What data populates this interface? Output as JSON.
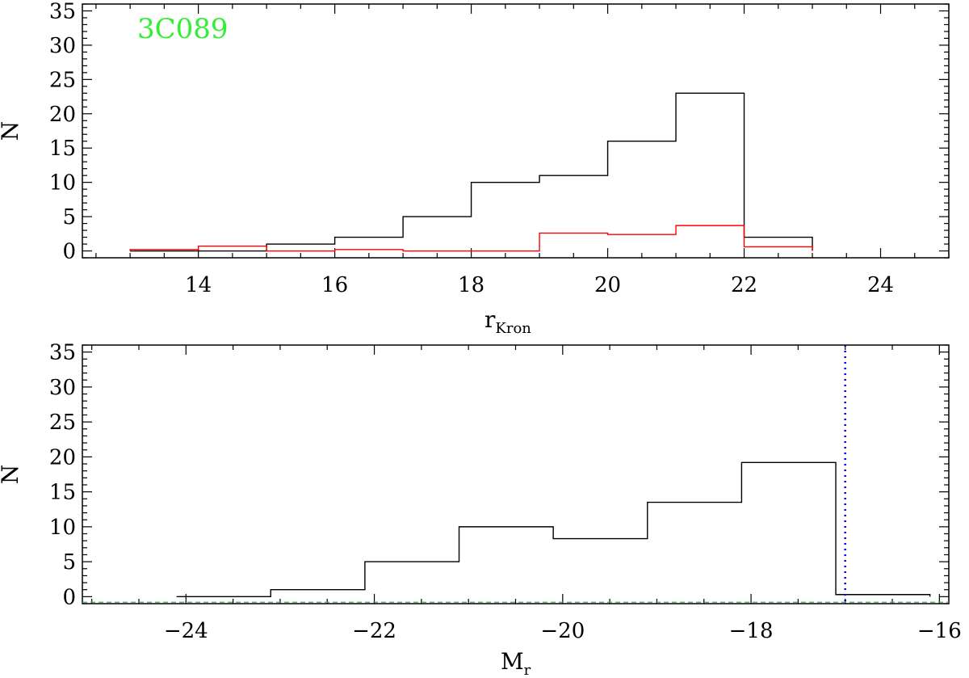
{
  "chart_data": [
    {
      "type": "histogram",
      "xlabel": "r",
      "xlabel_sub": "Kron",
      "ylabel": "N",
      "xlim": [
        12.3,
        25.0
      ],
      "ylim": [
        -1,
        36
      ],
      "xticks": [
        14,
        16,
        18,
        20,
        22,
        24
      ],
      "xtick_labels": [
        "14",
        "16",
        "18",
        "20",
        "22",
        "24"
      ],
      "yticks": [
        0,
        5,
        10,
        15,
        20,
        25,
        30,
        35
      ],
      "ytick_labels": [
        "0",
        "5",
        "10",
        "15",
        "20",
        "25",
        "30",
        "35"
      ],
      "annotation": {
        "text": "3C089",
        "color": "#33ee33"
      },
      "series": [
        {
          "color": "#000000",
          "bin_edges": [
            13,
            14,
            15,
            16,
            17,
            18,
            19,
            20,
            21,
            22,
            23
          ],
          "values": [
            0,
            0,
            1,
            2,
            5,
            10,
            11,
            16,
            23,
            2
          ]
        },
        {
          "color": "#ff0000",
          "bin_edges": [
            13,
            14,
            15,
            16,
            17,
            18,
            19,
            20,
            21,
            22,
            23
          ],
          "values": [
            0.2,
            0.7,
            0,
            0.2,
            0,
            0,
            2.6,
            2.4,
            3.7,
            0.6
          ]
        }
      ]
    },
    {
      "type": "histogram",
      "xlabel": "M",
      "xlabel_sub": "r",
      "ylabel": "N",
      "xlim": [
        -25.1,
        -15.9
      ],
      "ylim": [
        -1,
        36
      ],
      "xticks": [
        -24,
        -22,
        -20,
        -18,
        -16
      ],
      "xtick_labels": [
        "−24",
        "−22",
        "−20",
        "−18",
        "−16"
      ],
      "yticks": [
        0,
        5,
        10,
        15,
        20,
        25,
        30,
        35
      ],
      "ytick_labels": [
        "0",
        "5",
        "10",
        "15",
        "20",
        "25",
        "30",
        "35"
      ],
      "series": [
        {
          "color": "#000000",
          "bin_edges": [
            -24.1,
            -23.1,
            -22.1,
            -21.1,
            -20.1,
            -19.1,
            -18.1,
            -17.1,
            -16.1
          ],
          "values": [
            0,
            1,
            5,
            10,
            8.3,
            13.5,
            19.2,
            0.3
          ]
        }
      ],
      "vline": {
        "x": -17.0,
        "color": "#0000ff",
        "style": "dotted"
      },
      "hline": {
        "y": -0.8,
        "color": "#44aa66",
        "style": "dashed"
      }
    }
  ]
}
